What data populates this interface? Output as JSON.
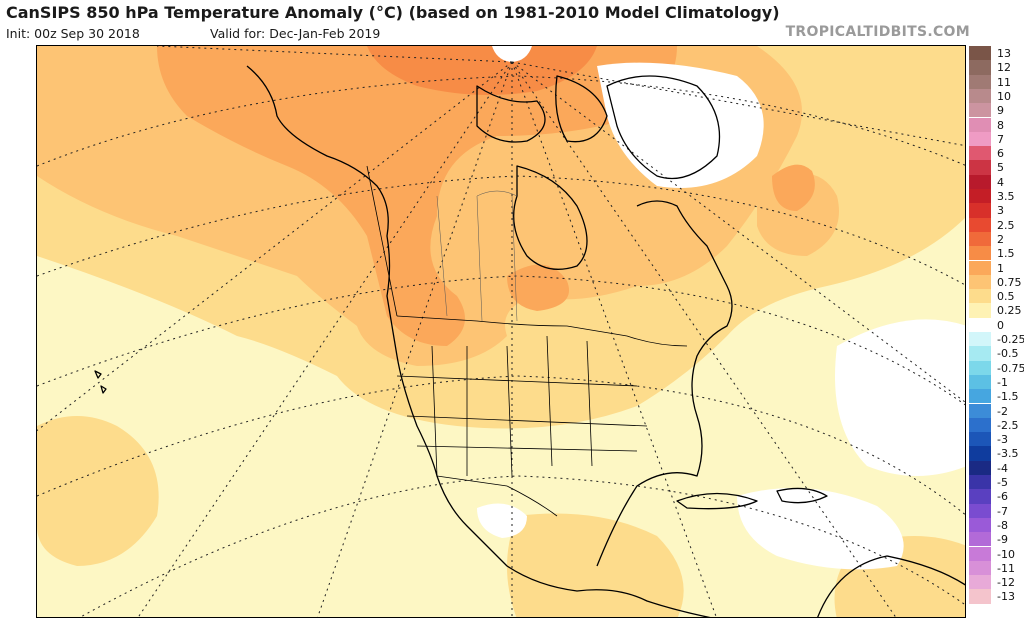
{
  "header": {
    "title": "CanSIPS 850 hPa Temperature Anomaly (°C) (based on 1981-2010 Model Climatology)",
    "init": "Init: 00z Sep 30 2018",
    "valid": "Valid for: Dec-Jan-Feb 2019",
    "brand": "TROPICALTIDBITS.COM"
  },
  "colorbar": {
    "labels": [
      "13",
      "12",
      "11",
      "10",
      "9",
      "8",
      "7",
      "6",
      "5",
      "4",
      "3.5",
      "3",
      "2.5",
      "2",
      "1.5",
      "1",
      "0.75",
      "0.5",
      "0.25",
      "0",
      "-0.25",
      "-0.5",
      "-0.75",
      "-1",
      "-1.5",
      "-2",
      "-2.5",
      "-3",
      "-3.5",
      "-4",
      "-5",
      "-6",
      "-7",
      "-8",
      "-9",
      "-10",
      "-11",
      "-12",
      "-13"
    ],
    "colors": [
      "#7a5548",
      "#8d6a60",
      "#a07a74",
      "#b88a8c",
      "#cc94a0",
      "#e08eb4",
      "#ef9bc4",
      "#e05870",
      "#cc3444",
      "#b81a2c",
      "#c41e26",
      "#d8302a",
      "#e84a30",
      "#f06a3a",
      "#f78c46",
      "#fba85a",
      "#fdc474",
      "#fddc8c",
      "#fef2b4",
      "#ffffff",
      "#d2f6fa",
      "#a6eaf2",
      "#7cd8ea",
      "#5cc0e4",
      "#46a6e0",
      "#3c8cd8",
      "#2c70cc",
      "#1c56b8",
      "#0f3c9e",
      "#1a2a84",
      "#3a34a8",
      "#5a40c0",
      "#7a4cd0",
      "#9a5ad8",
      "#b26ad8",
      "#c87ad8",
      "#d890d8",
      "#e8aad8",
      "#f4c4cc"
    ]
  }
}
